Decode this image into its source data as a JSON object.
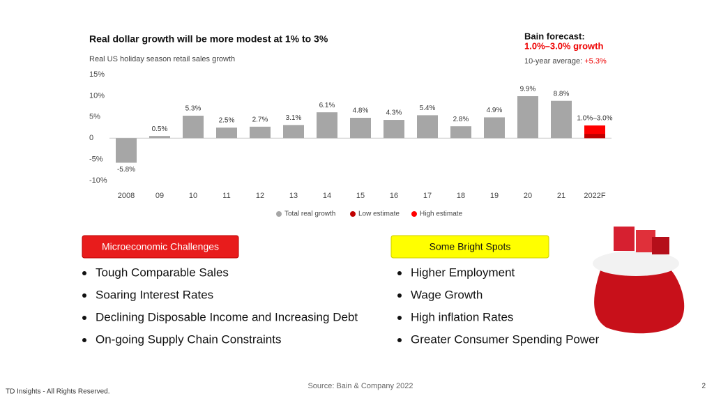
{
  "chart_data": {
    "type": "bar",
    "title": "Real dollar growth will be more modest at 1% to 3%",
    "subtitle": "Real US holiday season retail sales growth",
    "categories": [
      "2008",
      "09",
      "10",
      "11",
      "12",
      "13",
      "14",
      "15",
      "16",
      "17",
      "18",
      "19",
      "20",
      "21",
      "2022F"
    ],
    "series": [
      {
        "name": "Total real growth",
        "color": "#a6a6a6",
        "values": [
          -5.8,
          0.5,
          5.3,
          2.5,
          2.7,
          3.1,
          6.1,
          4.8,
          4.3,
          5.4,
          2.8,
          4.9,
          9.9,
          8.8,
          null
        ],
        "value_labels": [
          "-5.8%",
          "0.5%",
          "5.3%",
          "2.5%",
          "2.7%",
          "3.1%",
          "6.1%",
          "4.8%",
          "4.3%",
          "5.4%",
          "2.8%",
          "4.9%",
          "9.9%",
          "8.8%",
          null
        ]
      },
      {
        "name": "Low estimate",
        "color": "#c00000",
        "values": [
          null,
          null,
          null,
          null,
          null,
          null,
          null,
          null,
          null,
          null,
          null,
          null,
          null,
          null,
          1.0
        ]
      },
      {
        "name": "High estimate",
        "color": "#ff0000",
        "values": [
          null,
          null,
          null,
          null,
          null,
          null,
          null,
          null,
          null,
          null,
          null,
          null,
          null,
          null,
          3.0
        ],
        "value_labels": [
          null,
          null,
          null,
          null,
          null,
          null,
          null,
          null,
          null,
          null,
          null,
          null,
          null,
          null,
          "1.0%–3.0%"
        ]
      }
    ],
    "ylim": [
      -10,
      15
    ],
    "yticks": [
      {
        "value": -10,
        "label": "-10%"
      },
      {
        "value": -5,
        "label": "-5%"
      },
      0,
      {
        "value": 5,
        "label": "5%"
      },
      {
        "value": 10,
        "label": "10%"
      },
      {
        "value": 15,
        "label": "15%"
      }
    ],
    "grid": false
  },
  "forecast": {
    "heading": "Bain forecast:",
    "range": "1.0%–3.0% growth",
    "average_label": "10-year average:",
    "average_value": "+5.3%"
  },
  "challenges": {
    "heading": "Microeconomic  Challenges",
    "items": [
      "Tough Comparable Sales",
      "Soaring Interest Rates",
      "Declining Disposable Income and Increasing Debt",
      "On-going Supply Chain Constraints"
    ]
  },
  "bright_spots": {
    "heading": "Some Bright Spots",
    "items": [
      "Higher Employment",
      "Wage Growth",
      "High inflation Rates",
      "Greater Consumer Spending Power"
    ]
  },
  "source": "Source: Bain & Company 2022",
  "footer": "TD Insights - All Rights Reserved.",
  "page_number": 2
}
